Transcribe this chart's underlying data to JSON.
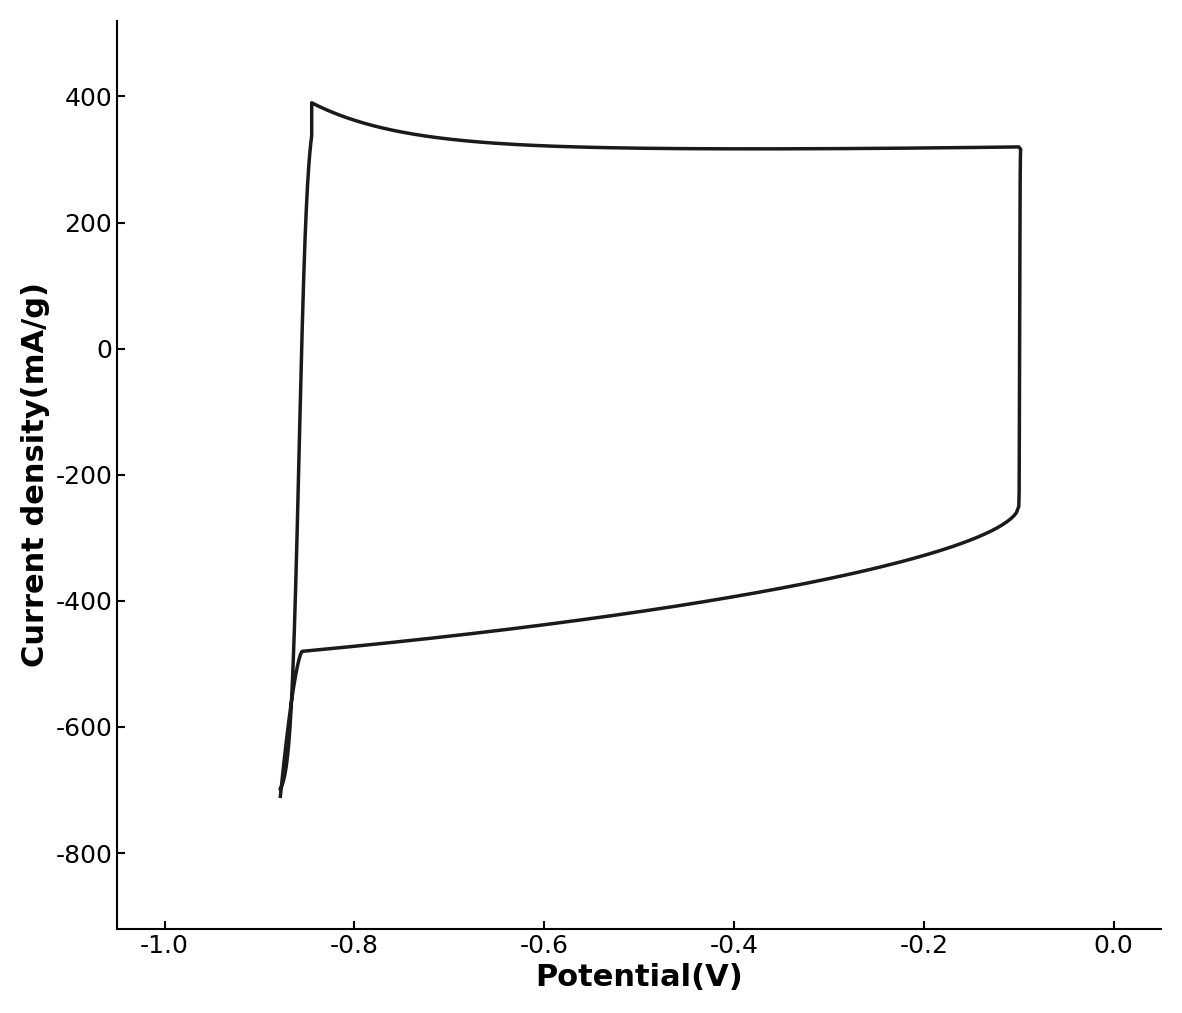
{
  "xlabel": "Potential(V)",
  "ylabel": "Current density(mA/g)",
  "xlim": [
    -1.05,
    0.05
  ],
  "ylim": [
    -920,
    520
  ],
  "xticks": [
    -1.0,
    -0.8,
    -0.6,
    -0.4,
    -0.2,
    0.0
  ],
  "yticks": [
    -800,
    -600,
    -400,
    -200,
    0,
    200,
    400
  ],
  "line_color": "#1a1a1a",
  "line_width": 2.5,
  "background_color": "#ffffff",
  "xlabel_fontsize": 22,
  "ylabel_fontsize": 22,
  "tick_fontsize": 18
}
